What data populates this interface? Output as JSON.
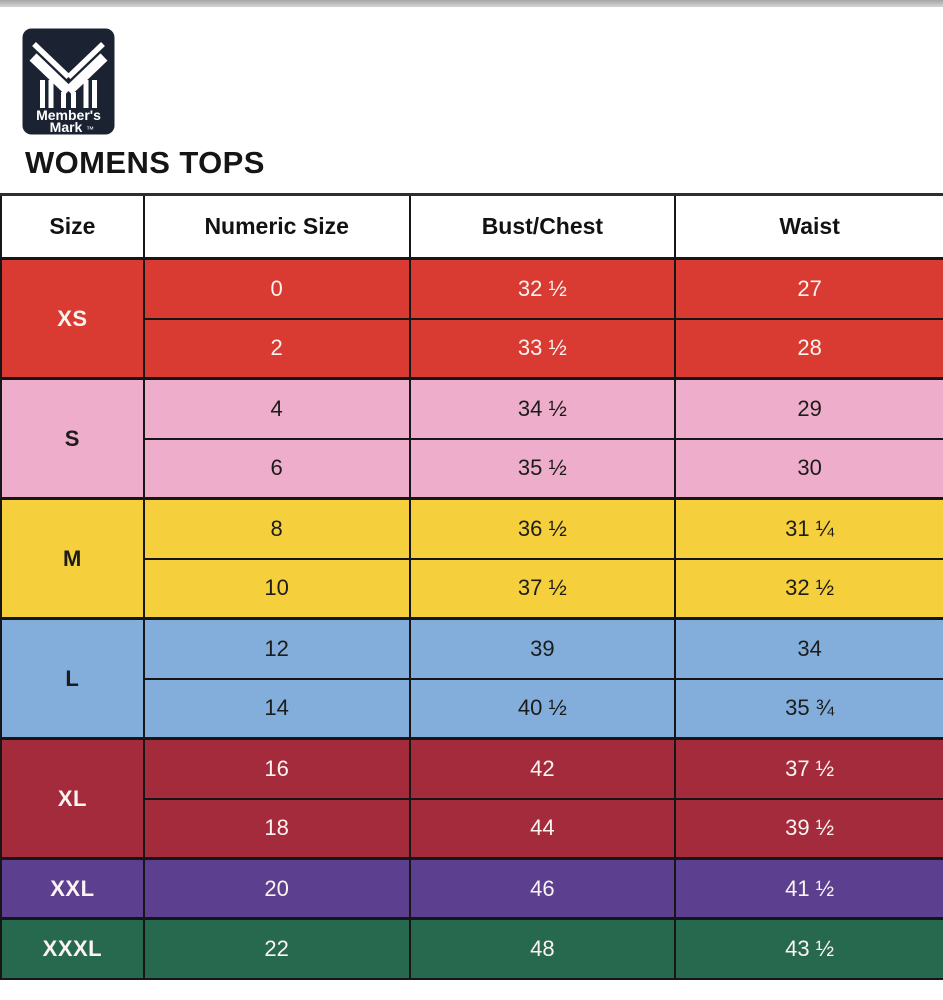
{
  "page": {
    "title": "WOMENS TOPS"
  },
  "logo": {
    "brand_line1": "Member's",
    "brand_line2": "Mark",
    "trademark": "™",
    "bg_color": "#1b2332",
    "mark_color": "#ffffff"
  },
  "table": {
    "headers": [
      "Size",
      "Numeric Size",
      "Bust/Chest",
      "Waist"
    ],
    "border_color": "#161616",
    "groups": [
      {
        "size": "XS",
        "bg": "#d93a32",
        "text": "#fbf3ef",
        "rows": [
          [
            "0",
            "32 ½",
            "27"
          ],
          [
            "2",
            "33 ½",
            "28"
          ]
        ]
      },
      {
        "size": "S",
        "bg": "#eeadca",
        "text": "#1c1c1a",
        "rows": [
          [
            "4",
            "34 ½",
            "29"
          ],
          [
            "6",
            "35 ½",
            "30"
          ]
        ]
      },
      {
        "size": "M",
        "bg": "#f6d03c",
        "text": "#1c1c1a",
        "rows": [
          [
            "8",
            "36 ½",
            "31 ¼"
          ],
          [
            "10",
            "37 ½",
            "32 ½"
          ]
        ]
      },
      {
        "size": "L",
        "bg": "#83aedc",
        "text": "#1c1c1a",
        "rows": [
          [
            "12",
            "39",
            "34"
          ],
          [
            "14",
            "40 ½",
            "35 ¾"
          ]
        ]
      },
      {
        "size": "XL",
        "bg": "#a42b3c",
        "text": "#fbf3ef",
        "rows": [
          [
            "16",
            "42",
            "37 ½"
          ],
          [
            "18",
            "44",
            "39 ½"
          ]
        ]
      },
      {
        "size": "XXL",
        "bg": "#5d3f90",
        "text": "#fbf3ef",
        "rows": [
          [
            "20",
            "46",
            "41 ½"
          ]
        ]
      },
      {
        "size": "XXXL",
        "bg": "#27694f",
        "text": "#fbf3ef",
        "rows": [
          [
            "22",
            "48",
            "43 ½"
          ]
        ]
      }
    ]
  },
  "chart_data": {
    "type": "table",
    "title": "WOMENS TOPS",
    "columns": [
      "Size",
      "Numeric Size",
      "Bust/Chest",
      "Waist"
    ],
    "rows": [
      [
        "XS",
        "0",
        "32 ½",
        "27"
      ],
      [
        "XS",
        "2",
        "33 ½",
        "28"
      ],
      [
        "S",
        "4",
        "34 ½",
        "29"
      ],
      [
        "S",
        "6",
        "35 ½",
        "30"
      ],
      [
        "M",
        "8",
        "36 ½",
        "31 ¼"
      ],
      [
        "M",
        "10",
        "37 ½",
        "32 ½"
      ],
      [
        "L",
        "12",
        "39",
        "34"
      ],
      [
        "L",
        "14",
        "40 ½",
        "35 ¾"
      ],
      [
        "XL",
        "16",
        "42",
        "37 ½"
      ],
      [
        "XL",
        "18",
        "44",
        "39 ½"
      ],
      [
        "XXL",
        "20",
        "46",
        "41 ½"
      ],
      [
        "XXXL",
        "22",
        "48",
        "43 ½"
      ]
    ],
    "group_colors": {
      "XS": "#d93a32",
      "S": "#eeadca",
      "M": "#f6d03c",
      "L": "#83aedc",
      "XL": "#a42b3c",
      "XXL": "#5d3f90",
      "XXXL": "#27694f"
    },
    "layout": {
      "header_bg": "#ffffff",
      "grid": true
    }
  }
}
